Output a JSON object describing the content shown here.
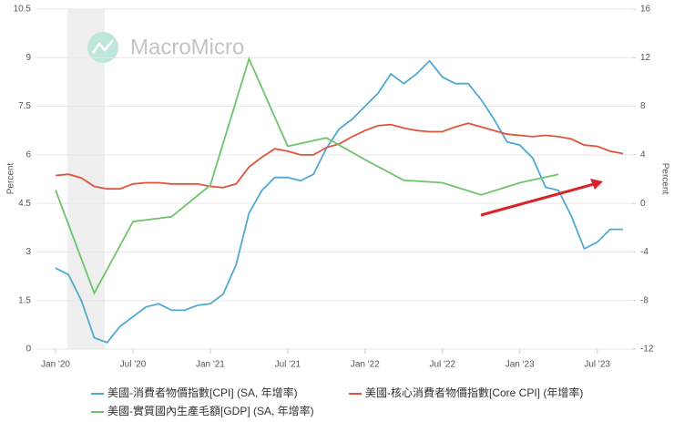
{
  "chart_data": {
    "type": "line",
    "watermark": "MacroMicro",
    "ylabel": "Percent",
    "y2label": "Percent",
    "xlim": [
      "2020-01",
      "2023-09"
    ],
    "xticks": [
      {
        "value": "2020-01",
        "label": "Jan '20"
      },
      {
        "value": "2020-07",
        "label": "Jul '20"
      },
      {
        "value": "2021-01",
        "label": "Jan '21"
      },
      {
        "value": "2021-07",
        "label": "Jul '21"
      },
      {
        "value": "2022-01",
        "label": "Jan '22"
      },
      {
        "value": "2022-07",
        "label": "Jul '22"
      },
      {
        "value": "2023-01",
        "label": "Jan '23"
      },
      {
        "value": "2023-07",
        "label": "Jul '23"
      }
    ],
    "ylim": [
      0,
      10.5
    ],
    "yticks": [
      0,
      1.5,
      3,
      4.5,
      6,
      7.5,
      9,
      10.5
    ],
    "y2lim": [
      -12,
      16
    ],
    "y2ticks": [
      -12,
      -8,
      -4,
      0,
      4,
      8,
      12,
      16
    ],
    "series": [
      {
        "name": "美國-消費者物價指數[CPI] (SA, 年增率)",
        "color": "#4fa9d2",
        "axis": "y",
        "x": [
          "2020-01",
          "2020-02",
          "2020-03",
          "2020-04",
          "2020-05",
          "2020-06",
          "2020-07",
          "2020-08",
          "2020-09",
          "2020-10",
          "2020-11",
          "2020-12",
          "2021-01",
          "2021-02",
          "2021-03",
          "2021-04",
          "2021-05",
          "2021-06",
          "2021-07",
          "2021-08",
          "2021-09",
          "2021-10",
          "2021-11",
          "2021-12",
          "2022-01",
          "2022-02",
          "2022-03",
          "2022-04",
          "2022-05",
          "2022-06",
          "2022-07",
          "2022-08",
          "2022-09",
          "2022-10",
          "2022-11",
          "2022-12",
          "2023-01",
          "2023-02",
          "2023-03",
          "2023-04",
          "2023-05",
          "2023-06",
          "2023-07",
          "2023-08",
          "2023-09"
        ],
        "values": [
          2.5,
          2.3,
          1.5,
          0.35,
          0.2,
          0.7,
          1.0,
          1.3,
          1.4,
          1.2,
          1.2,
          1.35,
          1.4,
          1.7,
          2.6,
          4.2,
          4.9,
          5.3,
          5.3,
          5.2,
          5.4,
          6.2,
          6.8,
          7.1,
          7.5,
          7.9,
          8.5,
          8.2,
          8.5,
          8.9,
          8.4,
          8.2,
          8.2,
          7.7,
          7.1,
          6.4,
          6.3,
          5.9,
          5.0,
          4.9,
          4.1,
          3.1,
          3.3,
          3.7,
          3.7
        ]
      },
      {
        "name": "美國-核心消費者物價指數[Core CPI] (年增率)",
        "color": "#e0543c",
        "axis": "y2",
        "x": [
          "2020-01",
          "2020-02",
          "2020-03",
          "2020-04",
          "2020-05",
          "2020-06",
          "2020-07",
          "2020-08",
          "2020-09",
          "2020-10",
          "2020-11",
          "2020-12",
          "2021-01",
          "2021-02",
          "2021-03",
          "2021-04",
          "2021-05",
          "2021-06",
          "2021-07",
          "2021-08",
          "2021-09",
          "2021-10",
          "2021-11",
          "2021-12",
          "2022-01",
          "2022-02",
          "2022-03",
          "2022-04",
          "2022-05",
          "2022-06",
          "2022-07",
          "2022-08",
          "2022-09",
          "2022-10",
          "2022-11",
          "2022-12",
          "2023-01",
          "2023-02",
          "2023-03",
          "2023-04",
          "2023-05",
          "2023-06",
          "2023-07",
          "2023-08",
          "2023-09"
        ],
        "values": [
          2.3,
          2.4,
          2.1,
          1.4,
          1.2,
          1.2,
          1.6,
          1.7,
          1.7,
          1.6,
          1.6,
          1.6,
          1.4,
          1.3,
          1.6,
          3.0,
          3.8,
          4.5,
          4.3,
          4.0,
          4.0,
          4.6,
          4.9,
          5.5,
          6.0,
          6.4,
          6.5,
          6.2,
          6.0,
          5.9,
          5.9,
          6.3,
          6.6,
          6.3,
          6.0,
          5.7,
          5.6,
          5.5,
          5.6,
          5.5,
          5.3,
          4.8,
          4.7,
          4.3,
          4.1
        ]
      },
      {
        "name": "美國-實質國內生產毛額[GDP] (SA, 年增率)",
        "color": "#6cc56a",
        "axis": "y2",
        "x": [
          "2020-01",
          "2020-04",
          "2020-07",
          "2020-10",
          "2021-01",
          "2021-04",
          "2021-07",
          "2021-10",
          "2022-01",
          "2022-04",
          "2022-07",
          "2022-10",
          "2023-01",
          "2023-04"
        ],
        "values": [
          1.1,
          -7.4,
          -1.5,
          -1.1,
          1.5,
          11.9,
          4.7,
          5.4,
          3.6,
          1.9,
          1.7,
          0.7,
          1.7,
          2.4
        ]
      }
    ]
  }
}
